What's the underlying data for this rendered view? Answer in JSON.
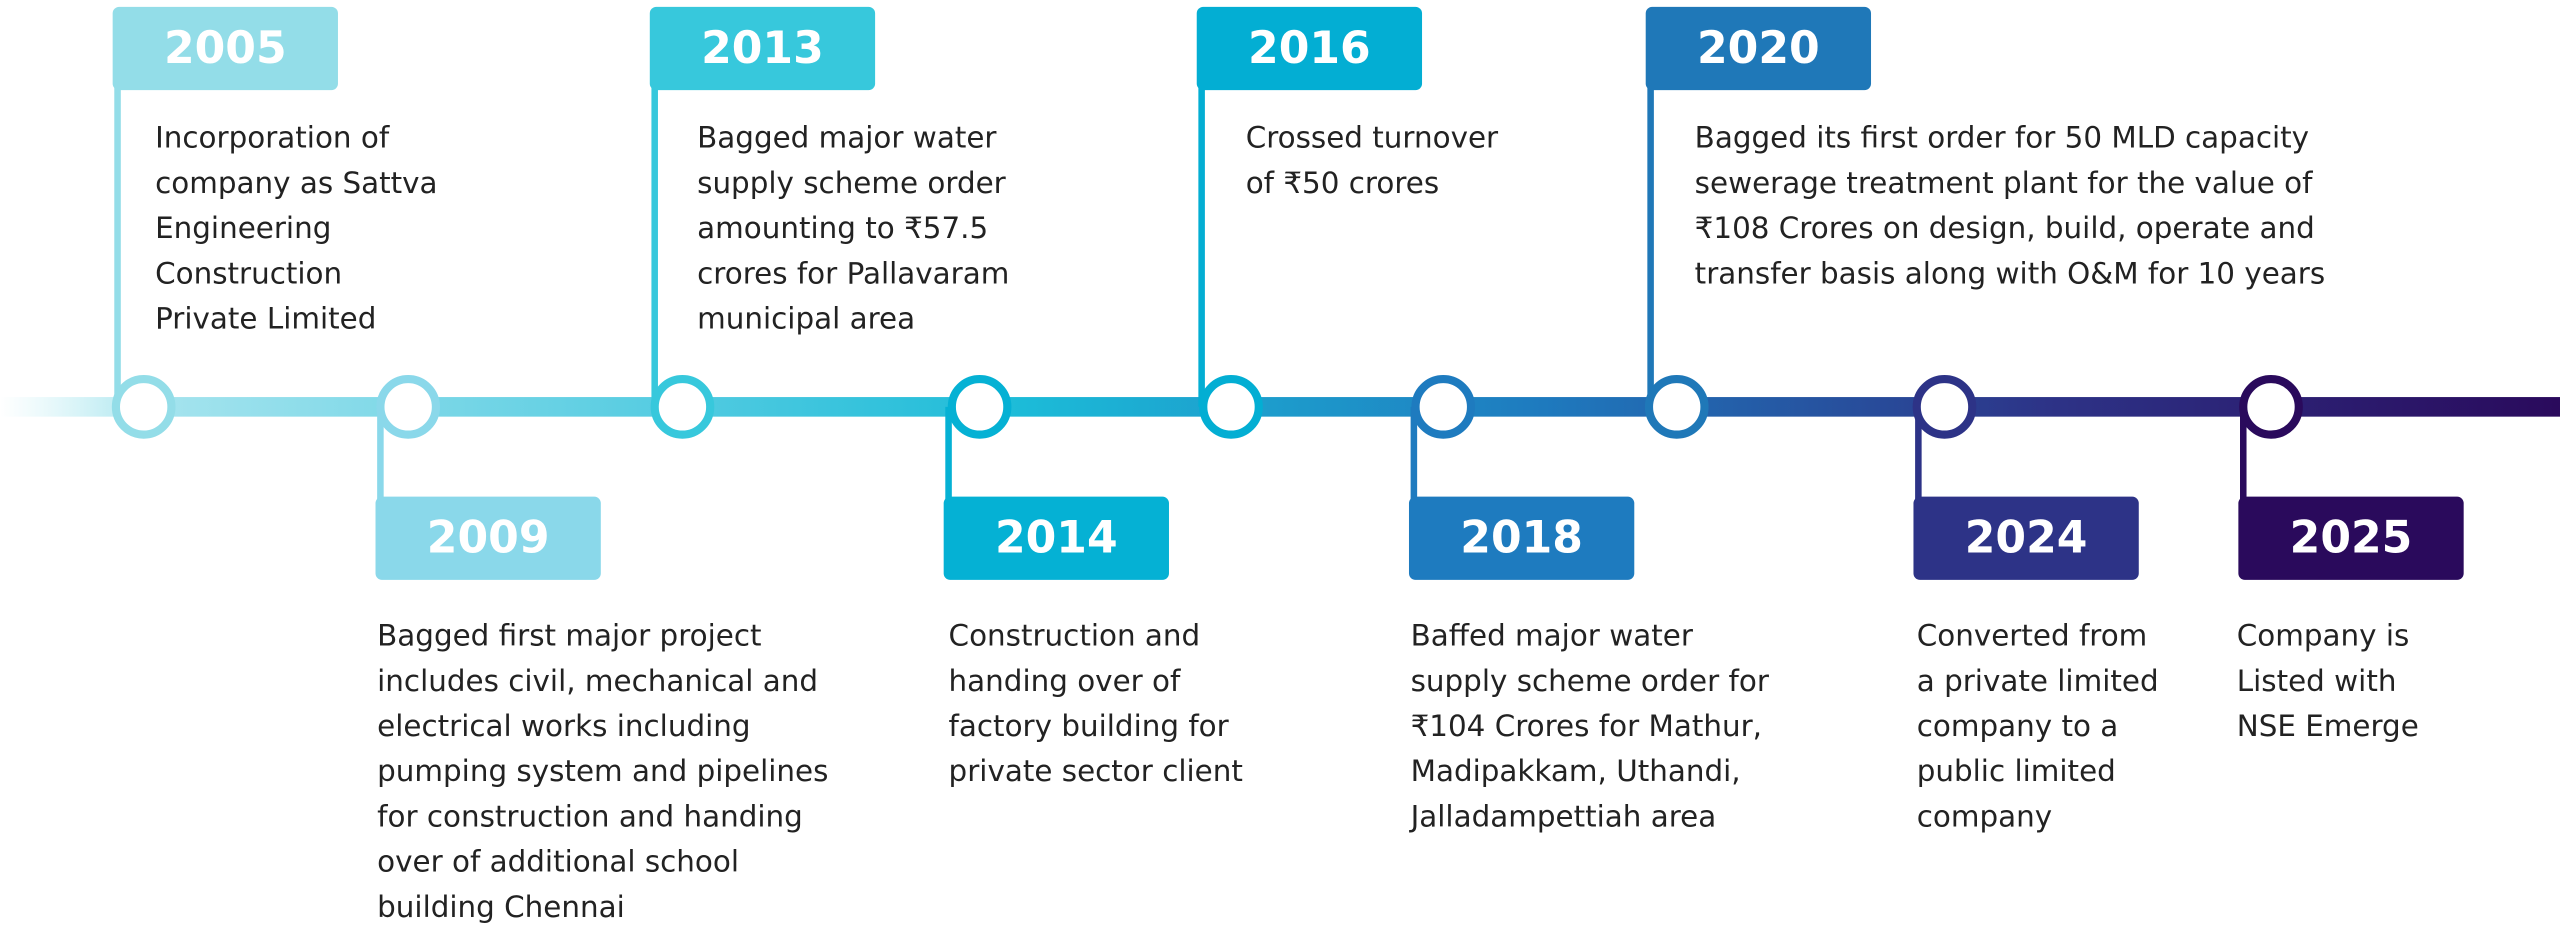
{
  "events": [
    {
      "year": "2005",
      "color": "#93dde8",
      "lines": [
        "Incorporation of",
        "company as Sattva",
        "Engineering",
        "Construction",
        "Private Limited"
      ]
    },
    {
      "year": "2009",
      "color": "#8ad8ea",
      "lines": [
        "Bagged first major project",
        "includes civil, mechanical and",
        "electrical works including",
        "pumping system and pipelines",
        "for construction and handing",
        "over of additional school",
        "building Chennai"
      ]
    },
    {
      "year": "2013",
      "color": "#37c8dc",
      "lines": [
        "Bagged major water",
        "supply scheme order",
        "amounting to ₹57.5",
        "crores for Pallavaram",
        "municipal area"
      ]
    },
    {
      "year": "2014",
      "color": "#05b1d4",
      "lines": [
        "Construction and",
        "handing over of",
        "factory building for",
        "private sector client"
      ]
    },
    {
      "year": "2016",
      "color": "#03aed3",
      "lines": [
        "Crossed turnover",
        "of ₹50 crores"
      ]
    },
    {
      "year": "2018",
      "color": "#1e7bbf",
      "lines": [
        "Baffed major water",
        "supply scheme order for",
        "₹104 Crores for Mathur,",
        "Madipakkam, Uthandi,",
        "Jalladampettiah area"
      ]
    },
    {
      "year": "2020",
      "color": "#1f78b8",
      "lines": [
        "Bagged its first order for 50 MLD capacity",
        "sewerage treatment plant for the value of",
        "₹108 Crores on design, build, operate and",
        "transfer basis along with O&M for 10 years"
      ]
    },
    {
      "year": "2024",
      "color": "#2d3387",
      "lines": [
        "Converted from",
        "a private limited",
        "company to a",
        "public limited",
        "company"
      ]
    },
    {
      "year": "2025",
      "color": "#2a0a5c",
      "lines": [
        "Company is",
        "Listed with",
        "NSE Emerge"
      ]
    }
  ]
}
